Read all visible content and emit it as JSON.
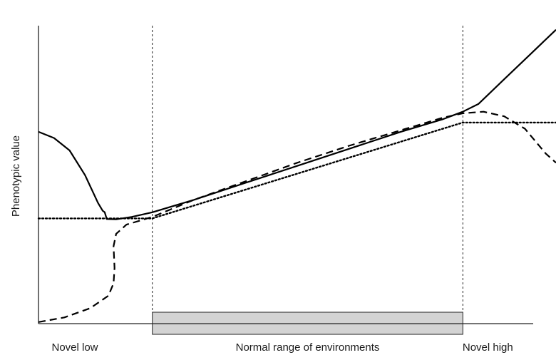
{
  "chart_data": {
    "type": "line",
    "title": "",
    "xlabel": "",
    "ylabel": "Phenotypic value",
    "x_region_labels": [
      "Novel low",
      "Normal range of environments",
      "Novel high"
    ],
    "x_range": [
      0,
      1
    ],
    "y_range": [
      0,
      1
    ],
    "grid": false,
    "legend": "none",
    "normal_range": {
      "start": 0.22,
      "end": 0.82,
      "fill": "#d3d3d3"
    },
    "series": [
      {
        "style": "solid",
        "color": "#000000",
        "points": [
          [
            0.0,
            0.62
          ],
          [
            0.03,
            0.6
          ],
          [
            0.06,
            0.56
          ],
          [
            0.09,
            0.48
          ],
          [
            0.115,
            0.39
          ],
          [
            0.124,
            0.365
          ],
          [
            0.128,
            0.36
          ],
          [
            0.132,
            0.338
          ],
          [
            0.15,
            0.337
          ],
          [
            0.18,
            0.345
          ],
          [
            0.22,
            0.36
          ],
          [
            0.3,
            0.4
          ],
          [
            0.4,
            0.455
          ],
          [
            0.5,
            0.51
          ],
          [
            0.6,
            0.565
          ],
          [
            0.7,
            0.62
          ],
          [
            0.78,
            0.66
          ],
          [
            0.82,
            0.685
          ],
          [
            0.85,
            0.71
          ],
          [
            0.9,
            0.79
          ],
          [
            0.95,
            0.87
          ],
          [
            1.0,
            0.95
          ]
        ]
      },
      {
        "style": "dashed",
        "color": "#000000",
        "points": [
          [
            0.0,
            0.005
          ],
          [
            0.05,
            0.02
          ],
          [
            0.1,
            0.05
          ],
          [
            0.135,
            0.09
          ],
          [
            0.145,
            0.13
          ],
          [
            0.147,
            0.18
          ],
          [
            0.145,
            0.25
          ],
          [
            0.15,
            0.29
          ],
          [
            0.17,
            0.32
          ],
          [
            0.22,
            0.345
          ],
          [
            0.3,
            0.4
          ],
          [
            0.4,
            0.46
          ],
          [
            0.5,
            0.52
          ],
          [
            0.6,
            0.575
          ],
          [
            0.7,
            0.625
          ],
          [
            0.78,
            0.665
          ],
          [
            0.82,
            0.68
          ],
          [
            0.86,
            0.685
          ],
          [
            0.9,
            0.67
          ],
          [
            0.94,
            0.63
          ],
          [
            0.98,
            0.55
          ],
          [
            1.0,
            0.52
          ]
        ]
      },
      {
        "style": "dotted",
        "color": "#000000",
        "points": [
          [
            0.0,
            0.34
          ],
          [
            0.22,
            0.34
          ],
          [
            0.82,
            0.65
          ],
          [
            1.0,
            0.65
          ]
        ]
      }
    ]
  }
}
